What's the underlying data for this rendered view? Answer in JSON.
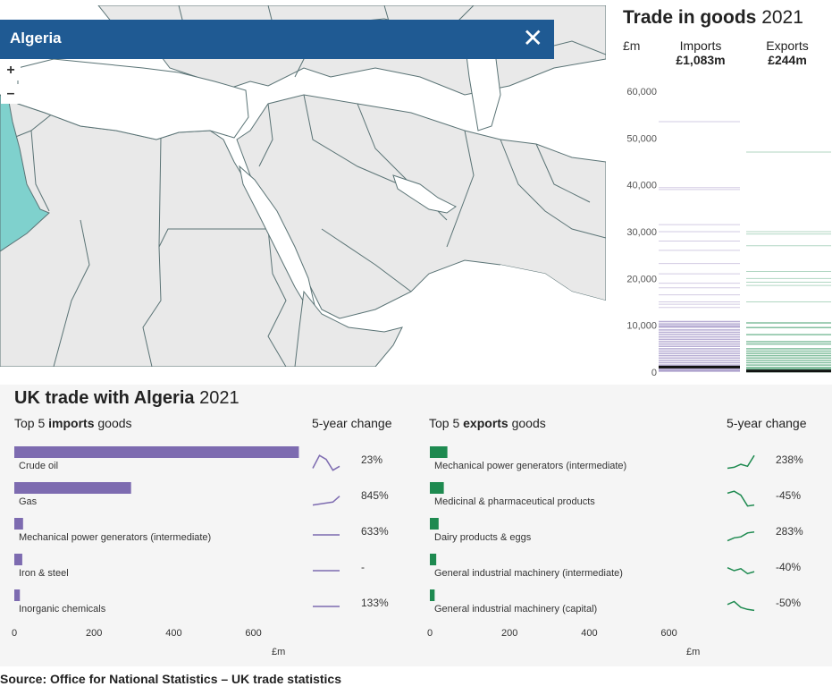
{
  "map": {
    "selected_country": "Algeria",
    "close_symbol": "✕",
    "zoom_in": "+",
    "zoom_out": "–",
    "colors": {
      "land": "#e9e9e9",
      "border": "#5a7375",
      "sea": "#ffffff",
      "selected": "#7fd1cd",
      "header": "#1f5a93"
    }
  },
  "trade_in_goods": {
    "title": "Trade in goods",
    "year": "2021",
    "unit": "£m",
    "imports_label": "Imports",
    "exports_label": "Exports",
    "imports_value": "£1,083m",
    "exports_value": "£244m"
  },
  "uk_trade": {
    "title": "UK trade with Algeria",
    "year": "2021",
    "imports_sub_prefix": "Top 5",
    "imports_sub_bold": "imports",
    "imports_sub_suffix": "goods",
    "exports_sub_prefix": "Top 5",
    "exports_sub_bold": "exports",
    "exports_sub_suffix": "goods",
    "change_label": "5-year change",
    "axis_unit": "£m"
  },
  "source": "Source: Office for National Statistics – UK trade statistics",
  "chart_data": [
    {
      "type": "line",
      "title": "Trade in goods 2021",
      "ylabel": "£m",
      "ylim": [
        0,
        65000
      ],
      "yticks": [
        0,
        10000,
        20000,
        30000,
        40000,
        50000,
        60000
      ],
      "ytick_labels": [
        "0",
        "10,000",
        "20,000",
        "30,000",
        "40,000",
        "50,000",
        "60,000"
      ],
      "series": [
        {
          "name": "Imports",
          "color": "#7d6bb0",
          "highlight": 1083,
          "values": [
            53500,
            39400,
            39000,
            31500,
            30000,
            28000,
            26000,
            23200,
            21000,
            19000,
            18000,
            16500,
            15000,
            14500,
            13800,
            10800,
            10300,
            9900,
            9600,
            9000,
            8500,
            8000,
            7500,
            7000,
            6500,
            6000,
            5500,
            5000,
            4500,
            4000,
            3500,
            3000,
            2500,
            2000,
            1500,
            1083,
            700,
            400,
            200
          ]
        },
        {
          "name": "Exports",
          "color": "#1e8a50",
          "highlight": 244,
          "values": [
            47000,
            30000,
            29500,
            27000,
            21500,
            20000,
            19200,
            18500,
            15000,
            10500,
            9500,
            8000,
            6500,
            6000,
            5000,
            4500,
            4000,
            3500,
            3000,
            2500,
            2000,
            1500,
            1000,
            700,
            500,
            244,
            150,
            80
          ]
        }
      ]
    },
    {
      "type": "bar",
      "title": "Top 5 imports goods",
      "categories": [
        "Crude oil",
        "Gas",
        "Mechanical power generators (intermediate)",
        "Iron & steel",
        "Inorganic chemicals"
      ],
      "values": [
        714,
        293,
        22,
        20,
        14
      ],
      "five_year_change": [
        "23%",
        "845%",
        "633%",
        "-",
        "133%"
      ],
      "sparklines": [
        [
          0.25,
          0.9,
          0.7,
          0.15,
          0.35
        ],
        [
          0.2,
          0.25,
          0.3,
          0.35,
          0.65
        ],
        [
          0.5,
          0.5,
          0.5,
          0.5,
          0.5
        ],
        [
          0.5,
          0.5,
          0.5,
          0.5,
          0.5
        ],
        [
          0.5,
          0.5,
          0.5,
          0.5,
          0.5
        ]
      ],
      "xlabel": "£m",
      "xlim": [
        0,
        750
      ],
      "xticks": [
        0,
        200,
        400,
        600
      ],
      "color": "#7d6bb0"
    },
    {
      "type": "bar",
      "title": "Top 5 exports goods",
      "categories": [
        "Mechanical power generators (intermediate)",
        "Medicinal & pharmaceutical products",
        "Dairy products & eggs",
        "General industrial machinery (intermediate)",
        "General industrial machinery (capital)"
      ],
      "values": [
        44,
        35,
        22,
        16,
        12
      ],
      "five_year_change": [
        "238%",
        "-45%",
        "283%",
        "-40%",
        "-50%"
      ],
      "sparklines": [
        [
          0.25,
          0.3,
          0.45,
          0.35,
          0.9
        ],
        [
          0.8,
          0.9,
          0.7,
          0.15,
          0.2
        ],
        [
          0.2,
          0.35,
          0.4,
          0.6,
          0.65
        ],
        [
          0.65,
          0.5,
          0.6,
          0.35,
          0.45
        ],
        [
          0.6,
          0.75,
          0.45,
          0.35,
          0.3
        ]
      ],
      "xlabel": "£m",
      "xlim": [
        0,
        750
      ],
      "xticks": [
        0,
        200,
        400,
        600
      ],
      "color": "#1e8a50"
    }
  ]
}
